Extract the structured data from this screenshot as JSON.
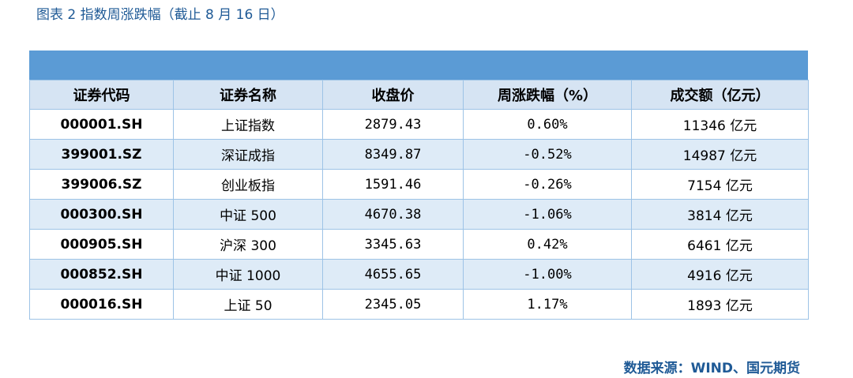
{
  "figure": {
    "title": "图表 2 指数周涨跌幅（截止 8 月 16 日）",
    "source": "数据来源：WIND、国元期货",
    "header_bar_color": "#5b9bd5",
    "title_color": "#1f5a96"
  },
  "table": {
    "headers": [
      "证券代码",
      "证券名称",
      "收盘价",
      "周涨跌幅（%）",
      "成交额（亿元）"
    ],
    "rows": [
      [
        "000001.SH",
        "上证指数",
        "2879.43",
        "0.60%",
        "11346 亿元"
      ],
      [
        "399001.SZ",
        "深证成指",
        "8349.87",
        "-0.52%",
        "14987 亿元"
      ],
      [
        "399006.SZ",
        "创业板指",
        "1591.46",
        "-0.26%",
        "7154 亿元"
      ],
      [
        "000300.SH",
        "中证 500",
        "4670.38",
        "-1.06%",
        "3814 亿元"
      ],
      [
        "000905.SH",
        "沪深 300",
        "3345.63",
        "0.42%",
        "6461 亿元"
      ],
      [
        "000852.SH",
        "中证 1000",
        "4655.65",
        "-1.00%",
        "4916 亿元"
      ],
      [
        "000016.SH",
        "上证 50",
        "2345.05",
        "1.17%",
        "1893 亿元"
      ]
    ]
  }
}
